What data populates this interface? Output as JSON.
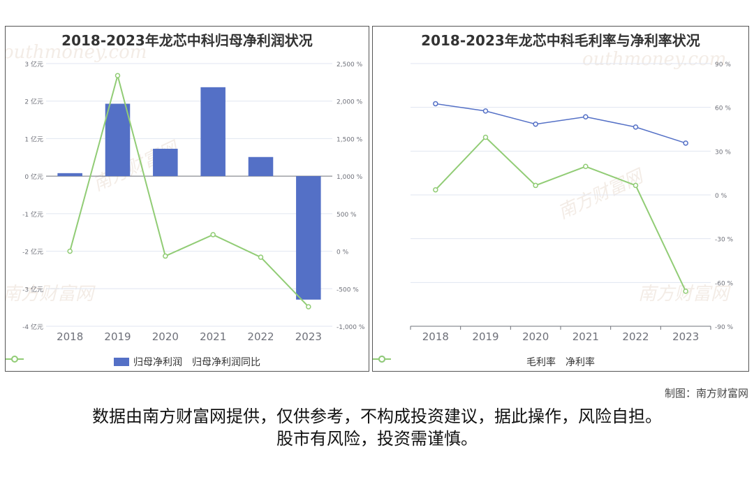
{
  "credit": "制图：南方财富网",
  "disclaimer": {
    "line1": "数据由南方财富网提供，仅供参考，不构成投资建议，据此操作，风险自担。",
    "line2": "股市有风险，投资需谨慎。"
  },
  "watermark": {
    "cn": "南方财富网",
    "en": "outhmoney.com"
  },
  "colors": {
    "bar": "#5470c6",
    "green": "#91cc75",
    "blue": "#5470c6"
  },
  "chart_data": [
    {
      "type": "bar",
      "title": "2018-2023年龙芯中科归母净利润状况",
      "categories": [
        "2018",
        "2019",
        "2020",
        "2021",
        "2022",
        "2023"
      ],
      "y_left": {
        "ticks": [
          3,
          2,
          1,
          0,
          -1,
          -2,
          -3,
          -4
        ],
        "tick_labels": [
          "3 亿元",
          "2 亿元",
          "1 亿元",
          "0 亿元",
          "-1 亿元",
          "-2 亿元",
          "-3 亿元",
          "-4 亿元"
        ],
        "range": [
          -4,
          3
        ]
      },
      "y_right": {
        "ticks": [
          2500,
          2000,
          1500,
          1000,
          500,
          0,
          -500,
          -1000
        ],
        "tick_labels": [
          "2,500 %",
          "2,000 %",
          "1,500 %",
          "1,000 %",
          "500 %",
          "0 %",
          "-500 %",
          "-1,000 %"
        ],
        "range": [
          -1000,
          2500
        ]
      },
      "series": [
        {
          "name": "归母净利润",
          "type": "bar",
          "axis": "left",
          "values": [
            0.08,
            1.93,
            0.73,
            2.37,
            0.51,
            -3.29
          ]
        },
        {
          "name": "归母净利润同比",
          "type": "line",
          "axis": "right",
          "values": [
            0,
            2340,
            -65,
            220,
            -80,
            -740
          ]
        }
      ],
      "legend": "bottom"
    },
    {
      "type": "line",
      "title": "2018-2023年龙芯中科毛利率与净利率状况",
      "categories": [
        "2018",
        "2019",
        "2020",
        "2021",
        "2022",
        "2023"
      ],
      "y_right": {
        "ticks": [
          90,
          60,
          30,
          0,
          -30,
          -60,
          -90
        ],
        "tick_labels": [
          "90 %",
          "60 %",
          "30 %",
          "0 %",
          "-30 %",
          "-60 %",
          "-90 %"
        ],
        "range": [
          -90,
          90
        ]
      },
      "series": [
        {
          "name": "毛利率",
          "values": [
            62.5,
            57.5,
            48.5,
            53.5,
            46.5,
            35.5
          ]
        },
        {
          "name": "净利率",
          "values": [
            3.5,
            39.5,
            6.5,
            19.5,
            6.5,
            -66
          ]
        }
      ],
      "legend": "bottom"
    }
  ]
}
